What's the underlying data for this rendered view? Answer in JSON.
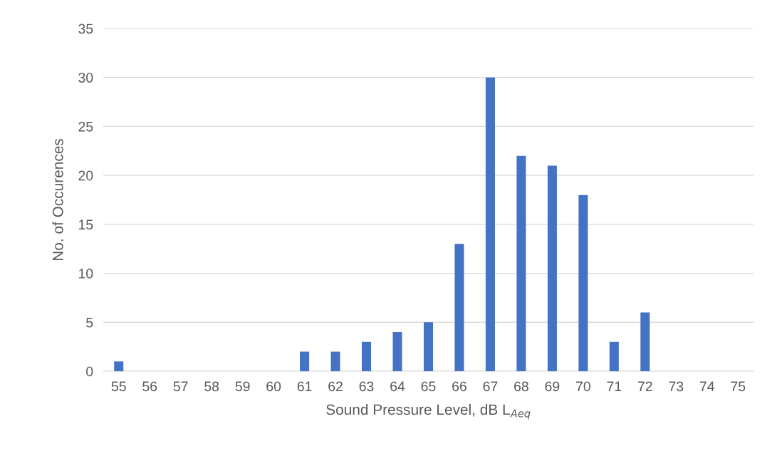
{
  "chart_data": {
    "type": "bar",
    "xlabel": "Sound Pressure Level, dB L$_{Aeq}$",
    "ylabel": "No. of Occurences",
    "categories": [
      "55",
      "56",
      "57",
      "58",
      "59",
      "60",
      "61",
      "62",
      "63",
      "64",
      "65",
      "66",
      "67",
      "68",
      "69",
      "70",
      "71",
      "72",
      "73",
      "74",
      "75"
    ],
    "values": [
      1,
      0,
      0,
      0,
      0,
      0,
      2,
      2,
      3,
      4,
      5,
      13,
      30,
      22,
      21,
      18,
      3,
      6,
      0,
      0,
      0
    ],
    "color": "#4472c4",
    "ylim": [
      0,
      35
    ],
    "yticks": [
      0,
      5,
      10,
      15,
      20,
      25,
      30,
      35
    ],
    "grid": "y"
  }
}
